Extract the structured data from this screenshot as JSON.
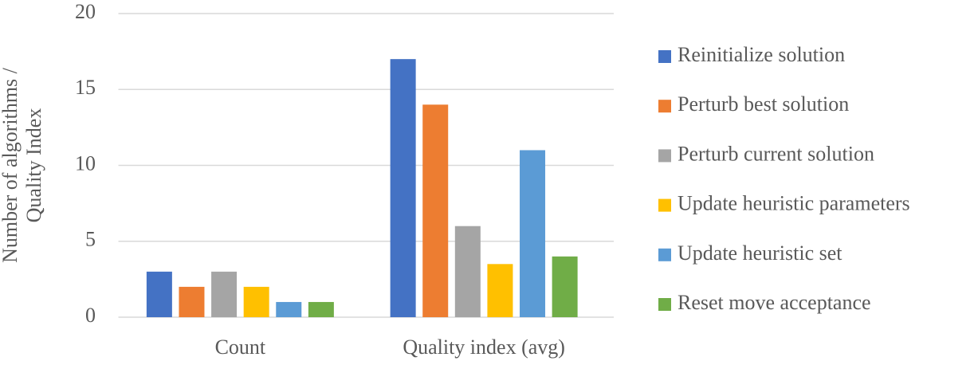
{
  "chart_data": {
    "type": "bar",
    "ylabel": [
      "Number of algorithms /",
      "Quality Index"
    ],
    "categories": [
      "Count",
      "Quality index (avg)"
    ],
    "series": [
      {
        "name": "Reinitialize solution",
        "color": "#4472c4",
        "values": [
          3,
          17
        ]
      },
      {
        "name": "Perturb best solution",
        "color": "#ed7d31",
        "values": [
          2,
          14
        ]
      },
      {
        "name": "Perturb current solution",
        "color": "#a5a5a5",
        "values": [
          3,
          6
        ]
      },
      {
        "name": "Update heuristic parameters",
        "color": "#ffc000",
        "values": [
          2,
          3.5
        ]
      },
      {
        "name": "Update heuristic set",
        "color": "#5b9bd5",
        "values": [
          1,
          11
        ]
      },
      {
        "name": "Reset move acceptance",
        "color": "#70ad47",
        "values": [
          1,
          4
        ]
      }
    ],
    "ylim": [
      0,
      20
    ],
    "yticks": [
      0,
      5,
      10,
      15,
      20
    ],
    "grid": true,
    "legend": "right"
  }
}
